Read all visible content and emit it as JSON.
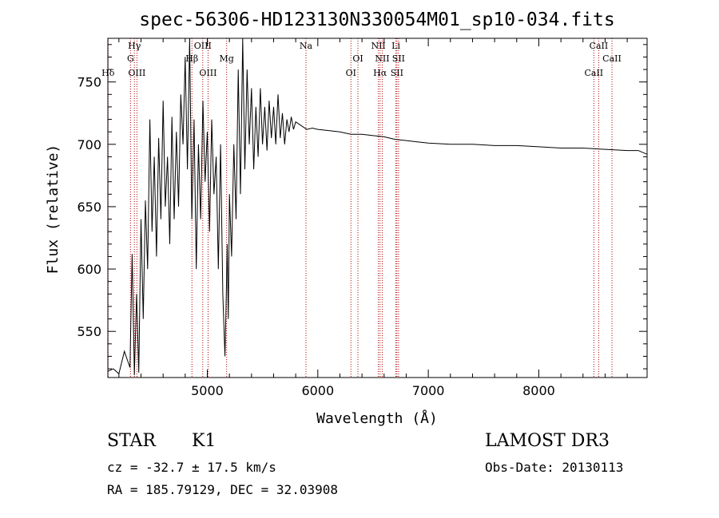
{
  "chart_data": {
    "type": "line",
    "title": "spec-56306-HD123130N330054M01_sp10-034.fits",
    "xlabel": "Wavelength (Å)",
    "ylabel": "Flux (relative)",
    "xlim": [
      4100,
      8980
    ],
    "ylim": [
      513,
      785
    ],
    "xticks": [
      5000,
      6000,
      7000,
      8000
    ],
    "yticks": [
      550,
      600,
      650,
      700,
      750
    ],
    "series": [
      {
        "name": "flux",
        "x": [
          4100,
          4150,
          4200,
          4250,
          4300,
          4320,
          4340,
          4360,
          4380,
          4400,
          4420,
          4440,
          4460,
          4480,
          4500,
          4520,
          4540,
          4560,
          4580,
          4600,
          4620,
          4640,
          4660,
          4680,
          4700,
          4720,
          4740,
          4760,
          4780,
          4800,
          4820,
          4840,
          4860,
          4880,
          4900,
          4920,
          4940,
          4960,
          4980,
          5000,
          5020,
          5040,
          5060,
          5080,
          5100,
          5120,
          5140,
          5160,
          5170,
          5180,
          5190,
          5200,
          5220,
          5240,
          5260,
          5280,
          5300,
          5320,
          5340,
          5360,
          5380,
          5400,
          5420,
          5440,
          5460,
          5480,
          5500,
          5520,
          5540,
          5560,
          5580,
          5600,
          5620,
          5640,
          5660,
          5680,
          5700,
          5720,
          5740,
          5760,
          5780,
          5800,
          5850,
          5900,
          5950,
          6000,
          6100,
          6200,
          6300,
          6400,
          6500,
          6600,
          6700,
          6800,
          6900,
          7000,
          7200,
          7400,
          7600,
          7800,
          8000,
          8200,
          8400,
          8600,
          8800,
          8900,
          8980
        ],
        "values": [
          518,
          520,
          516,
          534,
          521,
          612,
          515,
          580,
          517,
          640,
          560,
          655,
          600,
          720,
          630,
          690,
          610,
          705,
          640,
          735,
          650,
          690,
          620,
          722,
          640,
          710,
          650,
          740,
          700,
          770,
          680,
          785,
          640,
          720,
          600,
          700,
          640,
          735,
          670,
          710,
          630,
          720,
          660,
          690,
          600,
          700,
          580,
          530,
          570,
          620,
          560,
          660,
          610,
          700,
          640,
          760,
          660,
          785,
          680,
          760,
          700,
          745,
          680,
          730,
          690,
          745,
          700,
          730,
          695,
          735,
          705,
          730,
          700,
          740,
          705,
          725,
          700,
          720,
          710,
          722,
          712,
          718,
          715,
          712,
          713,
          712,
          711,
          710,
          708,
          708,
          707,
          706,
          704,
          703,
          702,
          701,
          700,
          700,
          699,
          699,
          698,
          697,
          697,
          696,
          695,
          695,
          692
        ]
      }
    ],
    "lines": [
      {
        "name": "Hδ",
        "x": 4102,
        "row": 3
      },
      {
        "name": "Hγ",
        "x": 4340,
        "row": 1
      },
      {
        "name": "G",
        "x": 4305,
        "row": 2
      },
      {
        "name": "OIII",
        "x": 4363,
        "row": 3
      },
      {
        "name": "Hβ",
        "x": 4861,
        "row": 2
      },
      {
        "name": "OIII",
        "x": 4959,
        "row": 1
      },
      {
        "name": "OIII",
        "x": 5007,
        "row": 3
      },
      {
        "name": "Mg",
        "x": 5175,
        "row": 2
      },
      {
        "name": "Na",
        "x": 5893,
        "row": 1
      },
      {
        "name": "OI",
        "x": 6300,
        "row": 3
      },
      {
        "name": "OI",
        "x": 6363,
        "row": 2
      },
      {
        "name": "NII",
        "x": 6548,
        "row": 1
      },
      {
        "name": "Hα",
        "x": 6563,
        "row": 3
      },
      {
        "name": "NII",
        "x": 6583,
        "row": 2
      },
      {
        "name": "Li",
        "x": 6707,
        "row": 1
      },
      {
        "name": "SII",
        "x": 6716,
        "row": 3
      },
      {
        "name": "SII",
        "x": 6731,
        "row": 2
      },
      {
        "name": "CaII",
        "x": 8498,
        "row": 3
      },
      {
        "name": "CaII",
        "x": 8542,
        "row": 1
      },
      {
        "name": "CaII",
        "x": 8662,
        "row": 2
      }
    ]
  },
  "info": {
    "object_class": "STAR",
    "subclass": "K1",
    "survey": "LAMOST DR3",
    "redshift": "cz = -32.7 ± 17.5 km/s",
    "obs_date": "Obs-Date: 20130113",
    "coords": "RA = 185.79129, DEC =  32.03908"
  }
}
